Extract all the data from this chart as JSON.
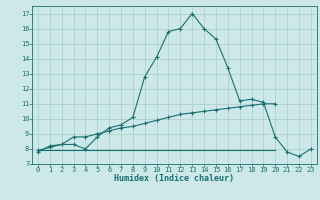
{
  "title": "",
  "xlabel": "Humidex (Indice chaleur)",
  "xlim": [
    -0.5,
    23.5
  ],
  "ylim": [
    7.0,
    17.5
  ],
  "yticks": [
    7,
    8,
    9,
    10,
    11,
    12,
    13,
    14,
    15,
    16,
    17
  ],
  "xticks": [
    0,
    1,
    2,
    3,
    4,
    5,
    6,
    7,
    8,
    9,
    10,
    11,
    12,
    13,
    14,
    15,
    16,
    17,
    18,
    19,
    20,
    21,
    22,
    23
  ],
  "bg_color": "#cce8e8",
  "grid_color": "#aacccc",
  "line_color": "#1a7070",
  "line1_x": [
    0,
    1,
    2,
    3,
    4,
    5,
    6,
    7,
    8,
    9,
    10,
    11,
    12,
    13,
    14,
    15,
    16,
    17,
    18,
    19,
    20,
    21,
    22,
    23
  ],
  "line1_y": [
    7.8,
    8.2,
    8.3,
    8.3,
    8.0,
    8.8,
    9.4,
    9.6,
    10.1,
    12.8,
    14.1,
    15.8,
    16.0,
    17.0,
    16.0,
    15.3,
    13.4,
    11.2,
    11.3,
    11.1,
    8.8,
    7.8,
    7.5,
    8.0
  ],
  "line2_x": [
    0,
    20
  ],
  "line2_y": [
    7.9,
    7.9
  ],
  "line3_x": [
    0,
    1,
    2,
    3,
    4,
    5,
    6,
    7,
    8,
    9,
    10,
    11,
    12,
    13,
    14,
    15,
    16,
    17,
    18,
    19,
    20
  ],
  "line3_y": [
    7.9,
    8.1,
    8.3,
    8.8,
    8.8,
    9.0,
    9.2,
    9.4,
    9.5,
    9.7,
    9.9,
    10.1,
    10.3,
    10.4,
    10.5,
    10.6,
    10.7,
    10.8,
    10.9,
    11.0,
    11.0
  ]
}
